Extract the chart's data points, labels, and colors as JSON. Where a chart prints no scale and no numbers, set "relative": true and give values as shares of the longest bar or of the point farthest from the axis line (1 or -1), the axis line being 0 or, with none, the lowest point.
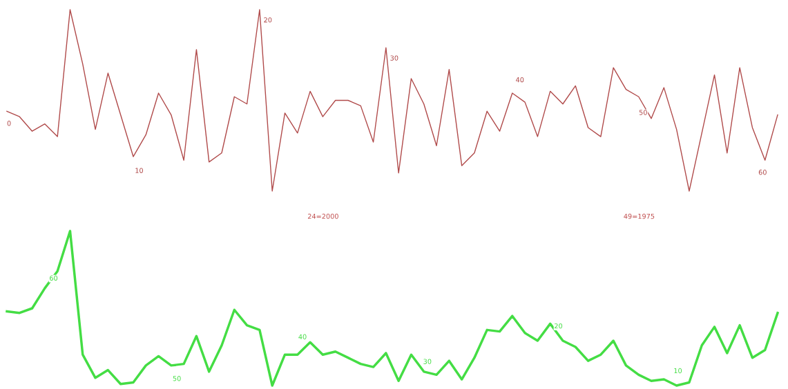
{
  "chart_data": [
    {
      "type": "line",
      "relative": true,
      "categories": [
        null,
        null,
        null,
        null,
        null,
        null,
        null,
        null,
        null,
        null,
        null,
        null,
        null,
        null,
        null,
        null,
        null,
        null,
        null,
        null,
        null,
        null,
        null,
        null,
        null,
        null,
        null,
        null,
        null,
        null,
        null,
        null,
        null,
        null,
        null,
        null,
        null,
        null,
        null,
        null,
        null,
        null,
        null,
        null,
        null,
        null,
        null,
        null,
        null,
        null,
        null,
        null,
        null,
        null,
        null,
        null,
        null,
        null,
        null,
        null,
        null,
        null
      ],
      "annotations": [
        "0",
        "10",
        "20",
        "30",
        "40",
        "50",
        "60"
      ],
      "series": [
        {
          "color": "#b04a4a",
          "values": [
            0.44,
            0.41,
            0.33,
            0.37,
            0.3,
            1,
            0.7,
            0.34,
            0.65,
            0.42,
            0.19,
            0.31,
            0.54,
            0.42,
            0.17,
            0.78,
            0.16,
            0.21,
            0.52,
            0.48,
            1,
            0,
            0.43,
            0.32,
            0.55,
            0.41,
            0.5,
            0.5,
            0.47,
            0.27,
            0.79,
            0.1,
            0.62,
            0.48,
            0.25,
            0.67,
            0.14,
            0.21,
            0.44,
            0.33,
            0.54,
            0.49,
            0.3,
            0.55,
            0.48,
            0.58,
            0.35,
            0.3,
            0.68,
            0.56,
            0.52,
            0.4,
            0.57,
            0.34,
            0.0,
            0.32,
            0.64,
            0.21,
            0.68,
            0.35,
            0.17,
            0.42
          ]
        }
      ]
    },
    {
      "type": "line",
      "relative": true,
      "categories": [
        null,
        null,
        null,
        null,
        null,
        null,
        null,
        null,
        null,
        null,
        null,
        null,
        null,
        null,
        null,
        null,
        null,
        null,
        null,
        null,
        null,
        null,
        null,
        null,
        null,
        null,
        null,
        null,
        null,
        null,
        null,
        null,
        null,
        null,
        null,
        null,
        null,
        null,
        null,
        null,
        null,
        null,
        null,
        null,
        null,
        null,
        null,
        null,
        null,
        null,
        null,
        null,
        null,
        null,
        null,
        null,
        null,
        null,
        null,
        null,
        null,
        null
      ],
      "annotations": [
        "24=2000",
        "49=1975",
        "60",
        "50",
        "40",
        "30",
        "20",
        "10"
      ],
      "series": [
        {
          "color": "#44dd44",
          "values": [
            0.48,
            0.47,
            0.5,
            0.63,
            0.74,
            1,
            0.2,
            0.05,
            0.1,
            0.01,
            0.02,
            0.13,
            0.19,
            0.13,
            0.14,
            0.32,
            0.09,
            0.26,
            0.49,
            0.39,
            0.36,
            0,
            0.2,
            0.2,
            0.28,
            0.2,
            0.22,
            0.18,
            0.14,
            0.12,
            0.21,
            0.03,
            0.2,
            0.09,
            0.07,
            0.16,
            0.04,
            0.18,
            0.36,
            0.35,
            0.45,
            0.34,
            0.29,
            0.4,
            0.29,
            0.25,
            0.16,
            0.2,
            0.29,
            0.13,
            0.07,
            0.03,
            0.04,
            0,
            0.02,
            0.26,
            0.38,
            0.21,
            0.39,
            0.18,
            0.23,
            0.47
          ]
        }
      ]
    }
  ]
}
